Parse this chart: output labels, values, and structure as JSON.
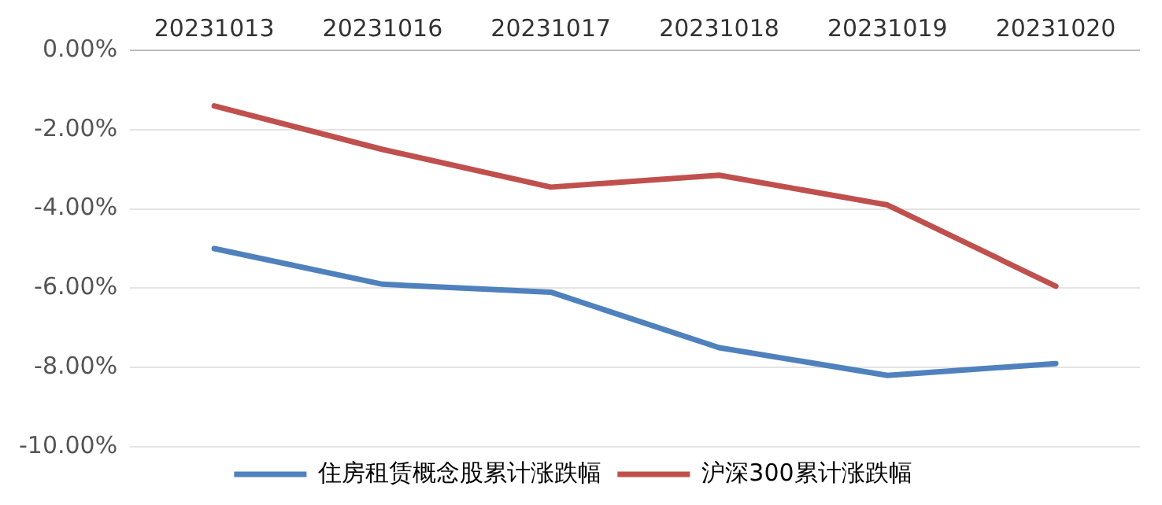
{
  "chart_data": {
    "type": "line",
    "categories": [
      "20231013",
      "20231016",
      "20231017",
      "20231018",
      "20231019",
      "20231020"
    ],
    "series": [
      {
        "name": "住房租赁概念股累计涨跌幅",
        "color": "#4f81bd",
        "values": [
          -5.0,
          -5.9,
          -6.1,
          -7.5,
          -8.2,
          -7.9
        ]
      },
      {
        "name": "沪深300累计涨跌幅",
        "color": "#c0504d",
        "values": [
          -1.4,
          -2.5,
          -3.45,
          -3.15,
          -3.9,
          -5.95
        ]
      }
    ],
    "ylim": [
      -10,
      0
    ],
    "yticks": [
      {
        "value": 0,
        "label": "0.00%"
      },
      {
        "value": -2,
        "label": "-2.00%"
      },
      {
        "value": -4,
        "label": "-4.00%"
      },
      {
        "value": -6,
        "label": "-6.00%"
      },
      {
        "value": -8,
        "label": "-8.00%"
      },
      {
        "value": -10,
        "label": "-10.00%"
      }
    ],
    "grid": "y",
    "legend": "bottom",
    "marker": "none",
    "line_style": "solid"
  }
}
